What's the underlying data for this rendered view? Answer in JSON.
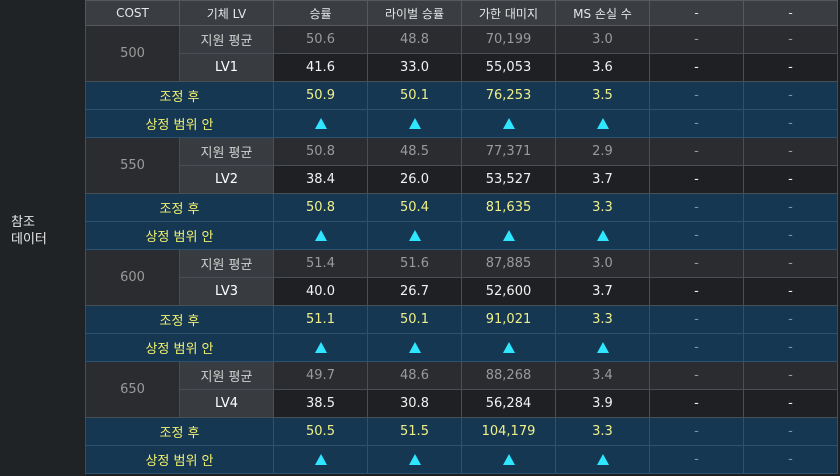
{
  "side_label_line1": "참조",
  "side_label_line2": "데이터",
  "headers": [
    "COST",
    "기체 LV",
    "승률",
    "라이벌 승률",
    "가한 대미지",
    "MS 손실 수",
    "-",
    "-"
  ],
  "groups": [
    {
      "cost": "500",
      "avg": {
        "label": "지원 평균",
        "values": [
          "50.6",
          "48.8",
          "70,199",
          "3.0"
        ]
      },
      "lv": {
        "label": "LV1",
        "values": [
          "41.6",
          "33.0",
          "55,053",
          "3.6"
        ]
      },
      "adjusted": {
        "label": "조정 후",
        "values": [
          "50.9",
          "50.1",
          "76,253",
          "3.5"
        ]
      },
      "range": {
        "label": "상정 범위 안"
      }
    },
    {
      "cost": "550",
      "avg": {
        "label": "지원 평균",
        "values": [
          "50.8",
          "48.5",
          "77,371",
          "2.9"
        ]
      },
      "lv": {
        "label": "LV2",
        "values": [
          "38.4",
          "26.0",
          "53,527",
          "3.7"
        ]
      },
      "adjusted": {
        "label": "조정 후",
        "values": [
          "50.8",
          "50.4",
          "81,635",
          "3.3"
        ]
      },
      "range": {
        "label": "상정 범위 안"
      }
    },
    {
      "cost": "600",
      "avg": {
        "label": "지원 평균",
        "values": [
          "51.4",
          "51.6",
          "87,885",
          "3.0"
        ]
      },
      "lv": {
        "label": "LV3",
        "values": [
          "40.0",
          "26.7",
          "52,600",
          "3.7"
        ]
      },
      "adjusted": {
        "label": "조정 후",
        "values": [
          "51.1",
          "50.1",
          "91,021",
          "3.3"
        ]
      },
      "range": {
        "label": "상정 범위 안"
      }
    },
    {
      "cost": "650",
      "avg": {
        "label": "지원 평균",
        "values": [
          "49.7",
          "48.6",
          "88,268",
          "3.4"
        ]
      },
      "lv": {
        "label": "LV4",
        "values": [
          "38.5",
          "30.8",
          "56,284",
          "3.9"
        ]
      },
      "adjusted": {
        "label": "조정 후",
        "values": [
          "50.5",
          "51.5",
          "104,179",
          "3.3"
        ]
      },
      "range": {
        "label": "상정 범위 안"
      }
    }
  ],
  "dash": "-",
  "triangle_icon": "up-triangle-icon",
  "colors": {
    "adjusted_row_bg": "#163752",
    "adjusted_text": "#f0f08a",
    "triangle": "#2ee6ff"
  }
}
